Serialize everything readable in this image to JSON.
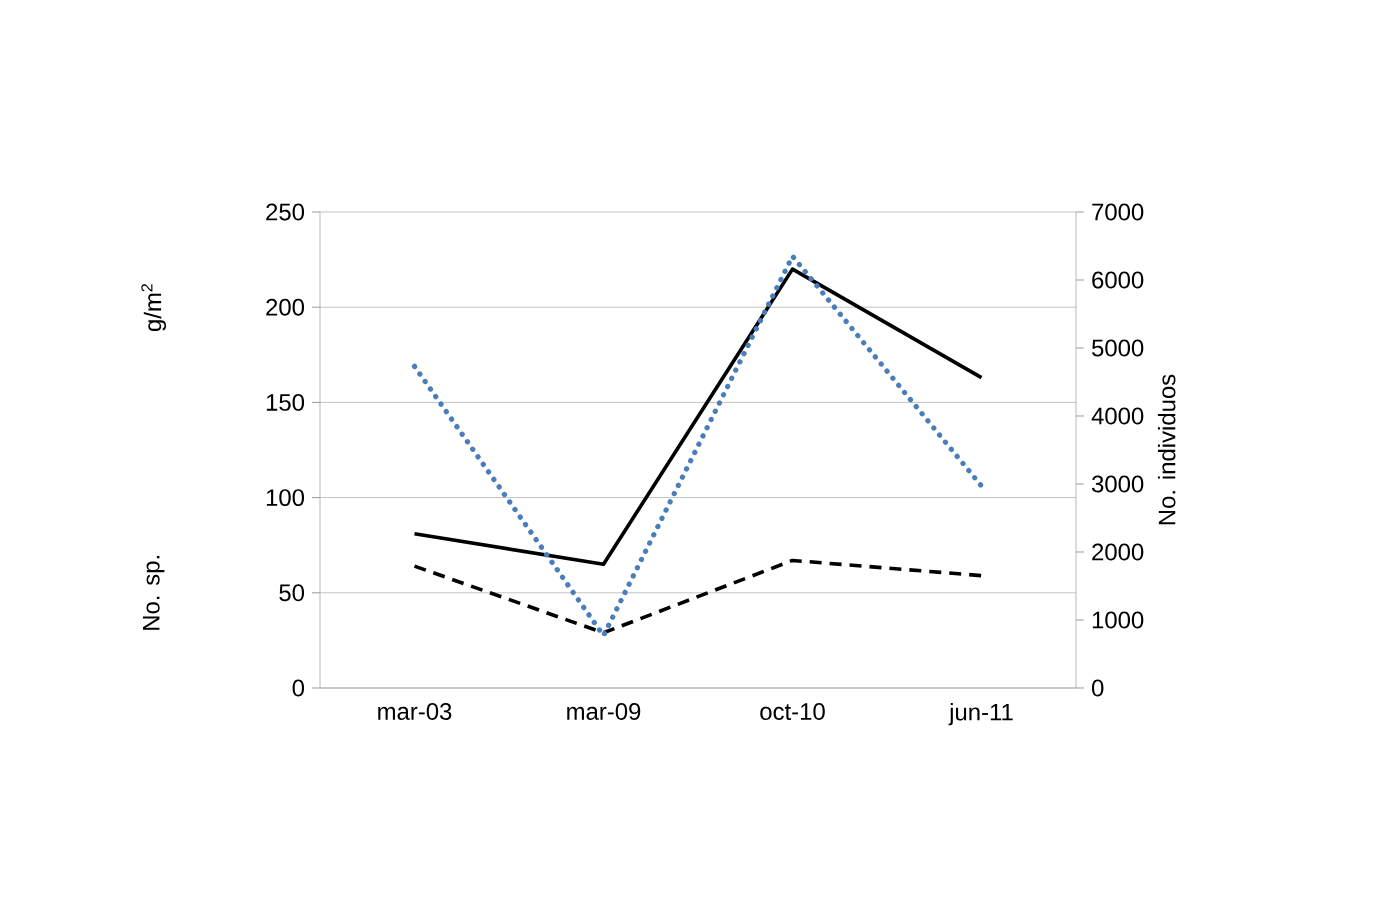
{
  "chart_data": {
    "type": "line",
    "categories": [
      "mar-03",
      "mar-09",
      "oct-10",
      "jun-11"
    ],
    "y2label": "No. individuos",
    "annotations": [
      "g/m$^{2}$",
      "No. sp."
    ],
    "series": [
      {
        "color": "#000000",
        "line_style": "solid",
        "values": [
          81,
          65,
          220,
          163
        ]
      },
      {
        "color": "#000000",
        "line_style": "dashed",
        "values": [
          64,
          29,
          67,
          59
        ]
      },
      {
        "color": "#4a7ebb",
        "line_style": "dotted",
        "axis": "y2",
        "values": [
          4730,
          770,
          6350,
          2970
        ]
      }
    ],
    "ylim": [
      0,
      250
    ],
    "yticks": [
      0,
      50,
      100,
      150,
      200,
      250
    ],
    "y2lim": [
      0,
      7000
    ],
    "y2ticks": [
      0,
      1000,
      2000,
      3000,
      4000,
      5000,
      6000,
      7000
    ],
    "grid": "y",
    "marker": "none"
  }
}
